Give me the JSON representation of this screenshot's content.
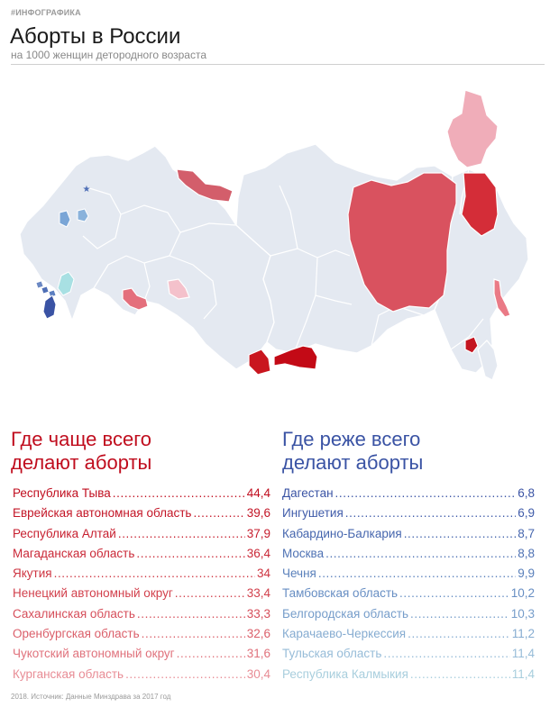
{
  "header": {
    "tag": "#ИНФОГРАФИКА",
    "title": "Аборты в России",
    "subtitle": "на 1000 женщин детородного возраста"
  },
  "map": {
    "base_color": "#e4e9f1",
    "border_color": "#ffffff",
    "capital_marker": "star-icon"
  },
  "high": {
    "title_line1": "Где чаще всего",
    "title_line2": "делают аборты",
    "items": [
      {
        "name": "Республика Тыва",
        "value": "44,4",
        "color": "#c00d1e"
      },
      {
        "name": "Еврейская автономная область",
        "value": "39,6",
        "color": "#c31526"
      },
      {
        "name": "Республика Алтай",
        "value": "37,9",
        "color": "#c71e2e"
      },
      {
        "name": "Магаданская область",
        "value": "36,4",
        "color": "#ca2837"
      },
      {
        "name": "Якутия",
        "value": "34",
        "color": "#ce3441"
      },
      {
        "name": "Ненецкий автономный округ",
        "value": "33,4",
        "color": "#d2404c"
      },
      {
        "name": "Сахалинская область",
        "value": "33,3",
        "color": "#d64e5a"
      },
      {
        "name": "Оренбургская область",
        "value": "32,6",
        "color": "#db5f6a"
      },
      {
        "name": "Чукотский автономный округ",
        "value": "31,6",
        "color": "#e0727c"
      },
      {
        "name": "Курганская область",
        "value": "30,4",
        "color": "#e88c95"
      }
    ]
  },
  "low": {
    "title_line1": "Где реже всего",
    "title_line2": "делают аборты",
    "items": [
      {
        "name": "Дагестан",
        "value": "6,8",
        "color": "#3a53a4"
      },
      {
        "name": "Ингушетия",
        "value": "6,9",
        "color": "#3f5ba9"
      },
      {
        "name": "Кабардино-Балкария",
        "value": "8,7",
        "color": "#4666ae"
      },
      {
        "name": "Москва",
        "value": "8,8",
        "color": "#4f72b4"
      },
      {
        "name": "Чечня",
        "value": "9,9",
        "color": "#5a80bb"
      },
      {
        "name": "Тамбовская область",
        "value": "10,2",
        "color": "#678ec3"
      },
      {
        "name": "Белгородская область",
        "value": "10,3",
        "color": "#769dca"
      },
      {
        "name": "Карачаево-Черкессия",
        "value": "11,2",
        "color": "#86acd1"
      },
      {
        "name": "Тульская область",
        "value": "11,4",
        "color": "#97bcd8"
      },
      {
        "name": "Республика Калмыкия",
        "value": "11,4",
        "color": "#a8cedd"
      }
    ]
  },
  "footer": {
    "source": "2018. Источник: Данные Минздрава за 2017 год"
  }
}
